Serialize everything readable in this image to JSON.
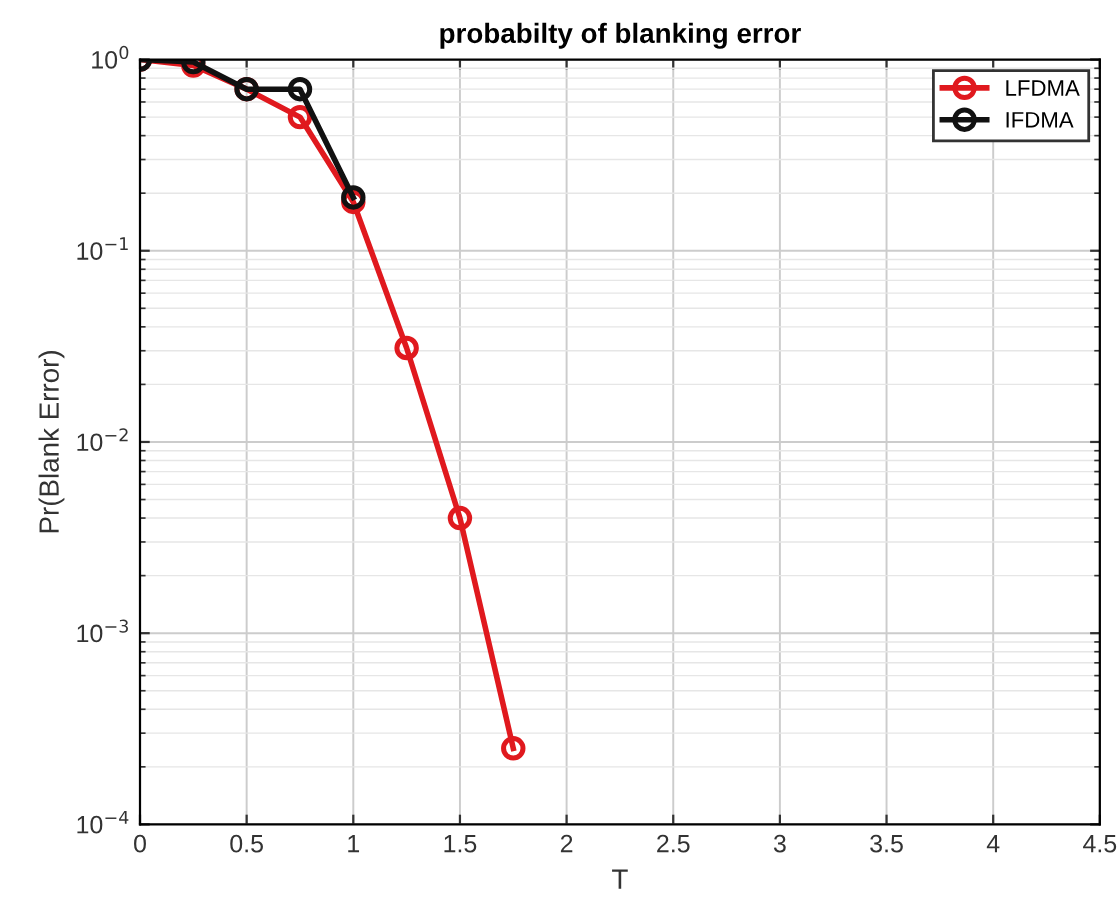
{
  "chart_data": {
    "type": "line",
    "title": "probabilty of blanking error",
    "xlabel": "T",
    "ylabel": "Pr(Blank Error)",
    "x": [
      0,
      0.25,
      0.5,
      0.75,
      1,
      1.25,
      1.5,
      1.75
    ],
    "series": [
      {
        "name": "LFDMA",
        "color": "#e0191e",
        "values": [
          1.0,
          0.93,
          0.7,
          0.5,
          0.18,
          0.031,
          0.004,
          0.00025
        ]
      },
      {
        "name": "IFDMA",
        "color": "#111111",
        "values": [
          1.0,
          0.97,
          0.7,
          0.7,
          0.19,
          null,
          null,
          null
        ]
      }
    ],
    "log": "y",
    "xlim": [
      0,
      4.5
    ],
    "ylim": [
      0.0001,
      1
    ],
    "xticks": [
      0,
      0.5,
      1,
      1.5,
      2,
      2.5,
      3,
      3.5,
      4,
      4.5
    ],
    "yticks": [
      {
        "value": 0.0001,
        "label": "10$^{−4}$"
      },
      {
        "value": 0.001,
        "label": "10$^{−3}$"
      },
      {
        "value": 0.01,
        "label": "10$^{−2}$"
      },
      {
        "value": 0.1,
        "label": "10$^{−1}$"
      },
      {
        "value": 1,
        "label": "10$^{0}$"
      }
    ],
    "grid": true,
    "legend": "top right",
    "marker": "circle",
    "line_style": "solid"
  }
}
